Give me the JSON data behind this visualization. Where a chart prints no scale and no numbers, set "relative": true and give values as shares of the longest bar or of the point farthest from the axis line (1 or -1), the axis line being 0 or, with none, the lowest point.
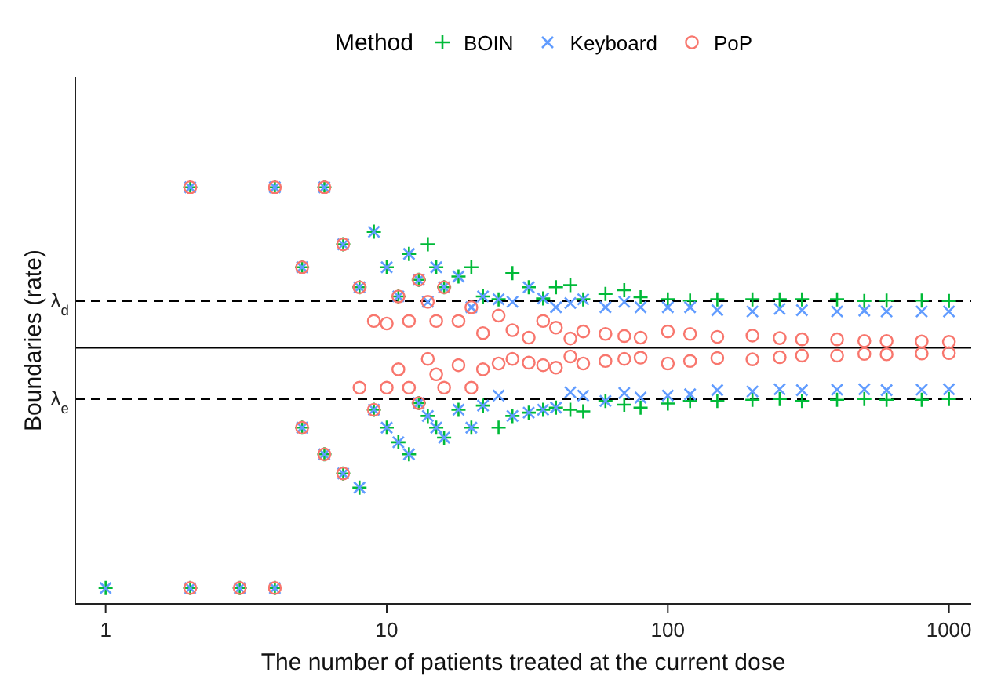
{
  "chart_data": {
    "type": "scatter",
    "relative": true,
    "xlabel": "The number of patients treated at the current dose",
    "ylabel": "Boundaries (rate)",
    "legend_title": "Method",
    "legend": "top",
    "log": "x",
    "xlim": [
      0.78,
      1200
    ],
    "xticks": [
      1,
      10,
      100,
      1000
    ],
    "ref_lines": [
      {
        "axis": "y",
        "value": 0.727,
        "label": "λ$_{d}$",
        "line_style": "dashed",
        "color": "#000000"
      },
      {
        "axis": "y",
        "value": 0.615,
        "line_style": "solid",
        "color": "#000000"
      },
      {
        "axis": "y",
        "value": 0.492,
        "label": "λ$_{e}$",
        "line_style": "dashed",
        "color": "#000000"
      }
    ],
    "series": [
      {
        "name": "BOIN",
        "color": "#00ba38",
        "marker": "cross",
        "x": [
          2,
          4,
          5,
          6,
          7,
          8,
          9,
          10,
          11,
          12,
          13,
          14,
          15,
          16,
          18,
          20,
          22,
          25,
          28,
          32,
          36,
          40,
          45,
          50,
          60,
          70,
          80,
          100,
          120,
          150,
          200,
          250,
          300,
          400,
          500,
          600,
          800,
          1000,
          1,
          2,
          3,
          4,
          5,
          6,
          7,
          8,
          9,
          10,
          11,
          12,
          13,
          14,
          15,
          16,
          18,
          20,
          22,
          25,
          28,
          32,
          36,
          40,
          45,
          50,
          60,
          70,
          80,
          100,
          120,
          150,
          200,
          250,
          300,
          400,
          500,
          600,
          800,
          1000
        ],
        "values": [
          1,
          1,
          0.808,
          1,
          0.863,
          0.76,
          0.893,
          0.808,
          0.738,
          0.84,
          0.778,
          0.863,
          0.808,
          0.76,
          0.786,
          0.808,
          0.738,
          0.731,
          0.794,
          0.76,
          0.733,
          0.76,
          0.765,
          0.731,
          0.744,
          0.753,
          0.736,
          0.731,
          0.728,
          0.731,
          0.731,
          0.731,
          0.731,
          0.731,
          0.727,
          0.728,
          0.728,
          0.727,
          0.038,
          0.038,
          0.038,
          0.038,
          0.423,
          0.359,
          0.313,
          0.279,
          0.466,
          0.423,
          0.388,
          0.359,
          0.482,
          0.451,
          0.423,
          0.399,
          0.466,
          0.423,
          0.476,
          0.423,
          0.451,
          0.459,
          0.466,
          0.471,
          0.466,
          0.462,
          0.487,
          0.478,
          0.471,
          0.481,
          0.487,
          0.487,
          0.49,
          0.492,
          0.487,
          0.49,
          0.492,
          0.49,
          0.49,
          0.492
        ]
      },
      {
        "name": "Keyboard",
        "color": "#619cff",
        "marker": "x",
        "x": [
          2,
          4,
          5,
          6,
          7,
          8,
          9,
          10,
          11,
          12,
          13,
          14,
          15,
          16,
          18,
          20,
          22,
          25,
          28,
          32,
          36,
          40,
          45,
          50,
          60,
          70,
          80,
          100,
          120,
          150,
          200,
          250,
          300,
          400,
          500,
          600,
          800,
          1000,
          1,
          2,
          3,
          4,
          5,
          6,
          7,
          8,
          9,
          10,
          11,
          12,
          13,
          14,
          15,
          16,
          18,
          20,
          22,
          25,
          28,
          32,
          36,
          40,
          45,
          50,
          60,
          70,
          80,
          100,
          120,
          150,
          200,
          250,
          300,
          400,
          500,
          600,
          800,
          1000
        ],
        "values": [
          1,
          1,
          0.808,
          1,
          0.863,
          0.76,
          0.893,
          0.808,
          0.738,
          0.84,
          0.778,
          0.725,
          0.808,
          0.76,
          0.786,
          0.712,
          0.738,
          0.731,
          0.725,
          0.76,
          0.733,
          0.712,
          0.722,
          0.731,
          0.712,
          0.725,
          0.712,
          0.712,
          0.712,
          0.705,
          0.702,
          0.708,
          0.705,
          0.702,
          0.704,
          0.702,
          0.702,
          0.702,
          0.038,
          0.038,
          0.038,
          0.038,
          0.423,
          0.359,
          0.313,
          0.279,
          0.466,
          0.423,
          0.388,
          0.359,
          0.482,
          0.451,
          0.423,
          0.399,
          0.466,
          0.423,
          0.476,
          0.5,
          0.451,
          0.459,
          0.466,
          0.471,
          0.508,
          0.5,
          0.487,
          0.506,
          0.495,
          0.5,
          0.503,
          0.513,
          0.51,
          0.515,
          0.513,
          0.514,
          0.515,
          0.513,
          0.514,
          0.515
        ]
      },
      {
        "name": "PoP",
        "color": "#f8766d",
        "marker": "circle",
        "x": [
          2,
          4,
          5,
          6,
          7,
          8,
          9,
          10,
          11,
          12,
          13,
          14,
          15,
          16,
          18,
          20,
          22,
          25,
          28,
          32,
          36,
          40,
          45,
          50,
          60,
          70,
          80,
          100,
          120,
          150,
          200,
          250,
          300,
          400,
          500,
          600,
          800,
          1000,
          2,
          3,
          4,
          5,
          6,
          7,
          8,
          9,
          10,
          11,
          12,
          13,
          14,
          15,
          16,
          18,
          20,
          22,
          25,
          28,
          32,
          36,
          40,
          45,
          50,
          60,
          70,
          80,
          100,
          120,
          150,
          200,
          250,
          300,
          400,
          500,
          600,
          800,
          1000
        ],
        "values": [
          1,
          1,
          0.808,
          1,
          0.863,
          0.76,
          0.679,
          0.673,
          0.738,
          0.679,
          0.778,
          0.725,
          0.679,
          0.76,
          0.679,
          0.712,
          0.65,
          0.692,
          0.657,
          0.639,
          0.679,
          0.663,
          0.637,
          0.654,
          0.648,
          0.643,
          0.639,
          0.654,
          0.648,
          0.641,
          0.644,
          0.638,
          0.635,
          0.635,
          0.631,
          0.631,
          0.63,
          0.629,
          0.038,
          0.038,
          0.038,
          0.423,
          0.359,
          0.313,
          0.519,
          0.466,
          0.519,
          0.563,
          0.519,
          0.482,
          0.588,
          0.551,
          0.519,
          0.573,
          0.519,
          0.563,
          0.577,
          0.588,
          0.579,
          0.573,
          0.567,
          0.594,
          0.577,
          0.583,
          0.588,
          0.591,
          0.577,
          0.583,
          0.59,
          0.587,
          0.592,
          0.596,
          0.596,
          0.6,
          0.599,
          0.601,
          0.602
        ]
      }
    ]
  }
}
